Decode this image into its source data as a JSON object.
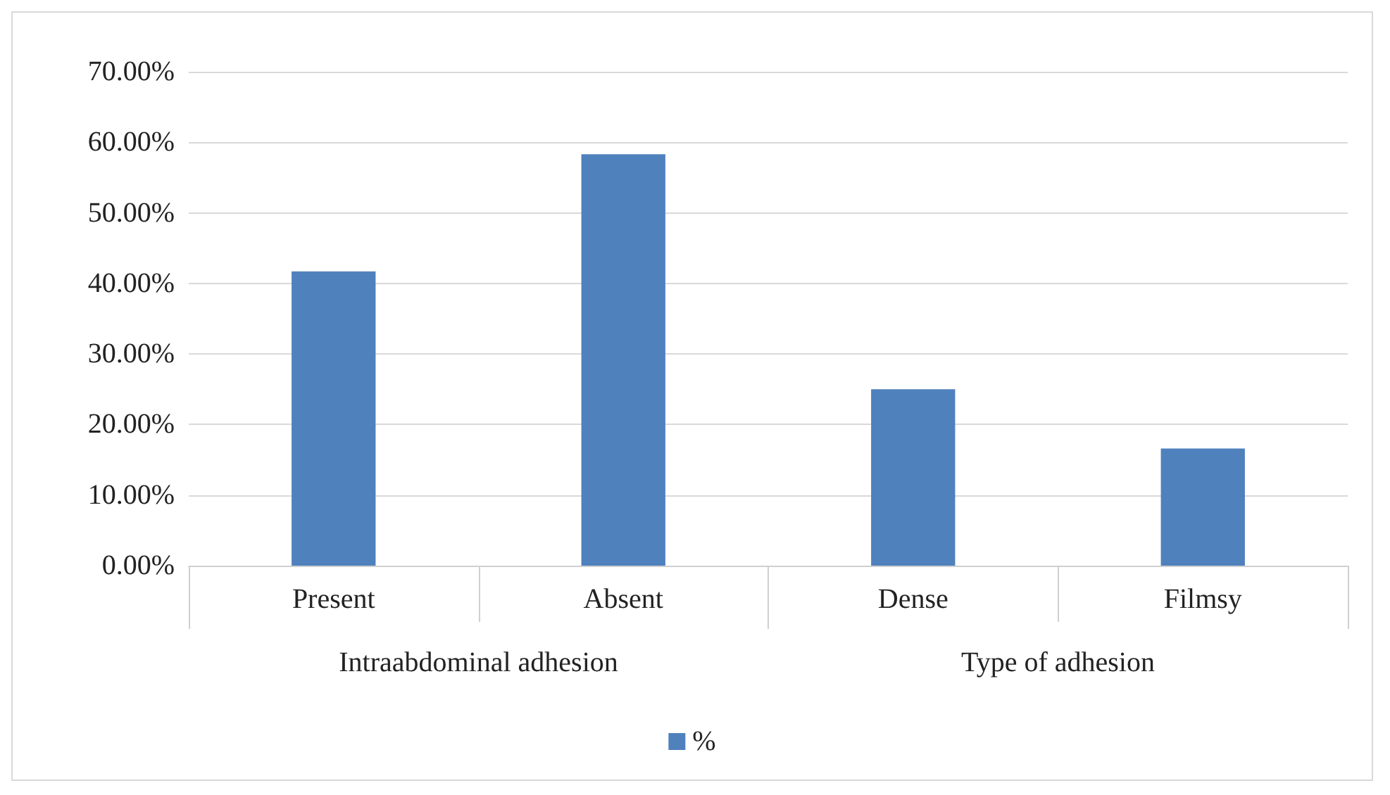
{
  "chart_data": {
    "type": "bar",
    "categories": [
      "Present",
      "Absent",
      "Dense",
      "Filmsy"
    ],
    "series": [
      {
        "name": "%",
        "color": "#4f81bd",
        "values": [
          41.7,
          58.3,
          25,
          16.6
        ]
      }
    ],
    "ylim": [
      0,
      70
    ],
    "yticks": [
      {
        "value": 0,
        "label": "0.00%"
      },
      {
        "value": 10,
        "label": "10.00%"
      },
      {
        "value": 20,
        "label": "20.00%"
      },
      {
        "value": 30,
        "label": "30.00%"
      },
      {
        "value": 40,
        "label": "40.00%"
      },
      {
        "value": 50,
        "label": "50.00%"
      },
      {
        "value": 60,
        "label": "60.00%"
      },
      {
        "value": 70,
        "label": "70.00%"
      }
    ],
    "grid": "y",
    "legend": "bottom",
    "annotations": [
      "Intraabdominal adhesion",
      "Type of adhesion"
    ]
  }
}
